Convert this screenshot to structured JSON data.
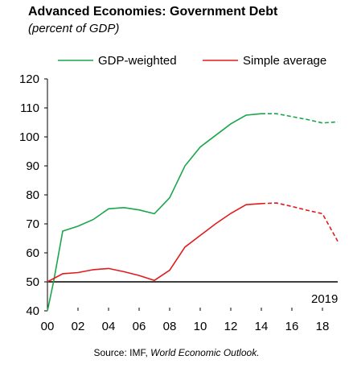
{
  "title": "Advanced Economies: Government Debt",
  "subtitle": "(percent of GDP)",
  "source": {
    "prefix": "Source: IMF, ",
    "italic": "World Economic Outlook."
  },
  "chart_data": {
    "type": "line",
    "title": "Advanced Economies: Government Debt",
    "subtitle": "(percent of GDP)",
    "xlabel": "",
    "ylabel": "",
    "ylim": [
      40,
      120
    ],
    "xlim": [
      2000,
      2019
    ],
    "yticks": [
      40,
      50,
      60,
      70,
      80,
      90,
      100,
      110,
      120
    ],
    "xticks": [
      2000,
      2002,
      2004,
      2006,
      2008,
      2010,
      2012,
      2014,
      2016,
      2018
    ],
    "xtick_labels": [
      "00",
      "02",
      "04",
      "06",
      "08",
      "10",
      "12",
      "14",
      "16",
      "18"
    ],
    "reference_line": {
      "y": 50,
      "color": "#000000"
    },
    "annotation": "2019",
    "legend": {
      "placement": "top"
    },
    "grid": false,
    "series": [
      {
        "name": "GDP-weighted",
        "color": "#1aa64a",
        "x": [
          2000,
          2000.4,
          2001,
          2002,
          2003,
          2004,
          2005,
          2006,
          2007,
          2008,
          2009,
          2010,
          2011,
          2012,
          2013,
          2014,
          2015,
          2016,
          2017,
          2018,
          2019
        ],
        "values": [
          40,
          50,
          67.5,
          69.2,
          71.5,
          75.2,
          75.6,
          74.8,
          73.5,
          79,
          90,
          96.5,
          100.5,
          104.5,
          107.5,
          108,
          108,
          107,
          106,
          104.8,
          105.2
        ],
        "projection_from": 2014
      },
      {
        "name": "Simple average",
        "color": "#e31a1c",
        "x": [
          2000,
          2001,
          2002,
          2003,
          2004,
          2005,
          2006,
          2007,
          2008,
          2009,
          2010,
          2011,
          2012,
          2013,
          2014,
          2015,
          2016,
          2017,
          2018,
          2019
        ],
        "values": [
          50,
          52.8,
          53.2,
          54.2,
          54.6,
          53.5,
          52.2,
          50.5,
          54,
          62,
          66,
          70,
          73.6,
          76.6,
          77,
          77.2,
          76,
          74.7,
          73.5,
          64
        ],
        "projection_from": 2014
      }
    ]
  }
}
